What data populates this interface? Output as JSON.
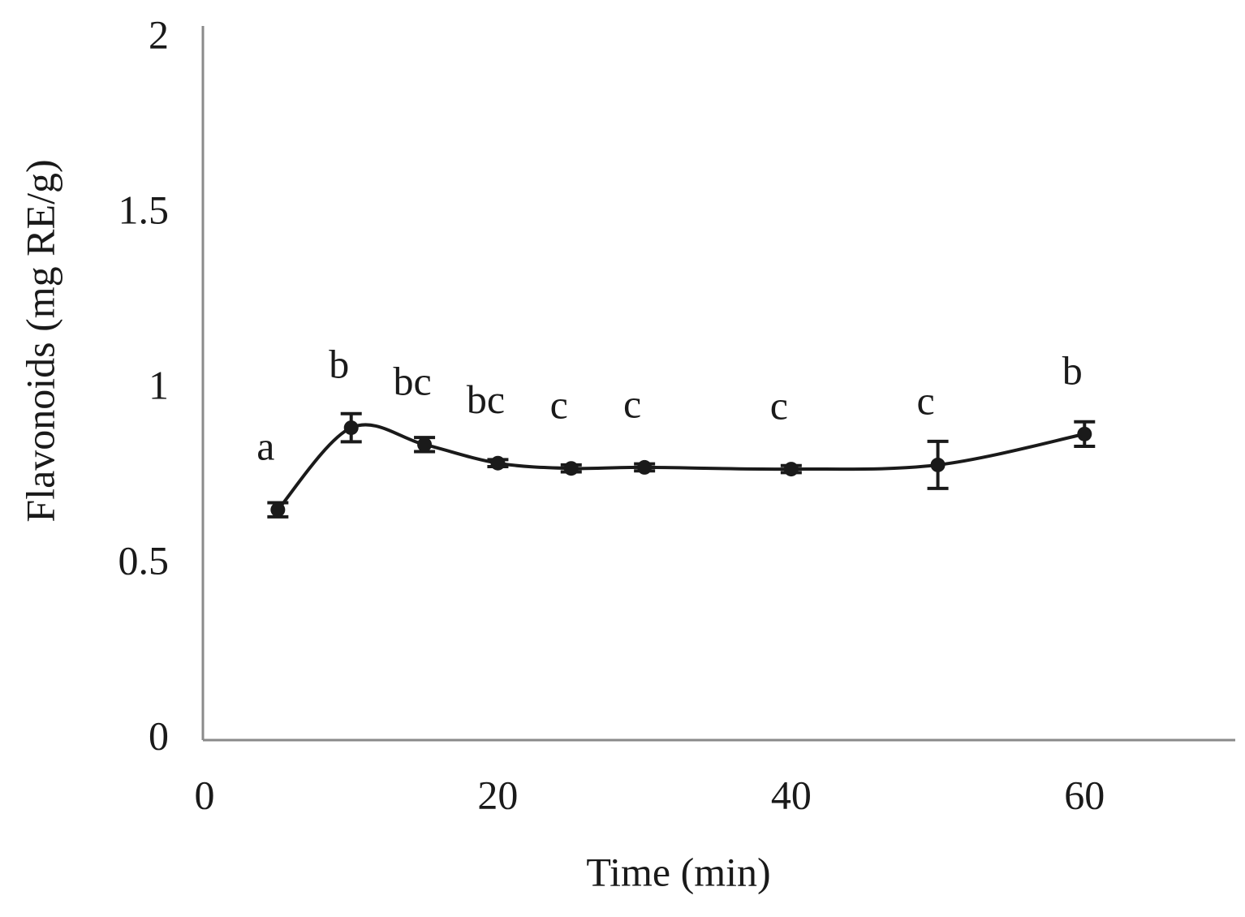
{
  "chart_data": {
    "type": "line",
    "x_label": "Time (min)",
    "y_label": "Flavonoids (mg RE/g)",
    "x": [
      5,
      10,
      15,
      20,
      25,
      30,
      40,
      50,
      60
    ],
    "series": [
      {
        "color": "#1a1a1a",
        "values": [
          0.657,
          0.891,
          0.843,
          0.79,
          0.775,
          0.778,
          0.773,
          0.785,
          0.873
        ],
        "errors": [
          0.02,
          0.04,
          0.02,
          0.01,
          0.01,
          0.01,
          0.01,
          0.067,
          0.035
        ],
        "annotations": [
          "a",
          "b",
          "bc",
          "bc",
          "c",
          "c",
          "c",
          "c",
          "b"
        ]
      }
    ],
    "xlim": [
      0,
      70
    ],
    "xticks": [
      0,
      20,
      40,
      60
    ],
    "ylim": [
      0,
      2
    ],
    "yticks": [
      0,
      0.5,
      1,
      1.5,
      2
    ],
    "grid": false
  }
}
